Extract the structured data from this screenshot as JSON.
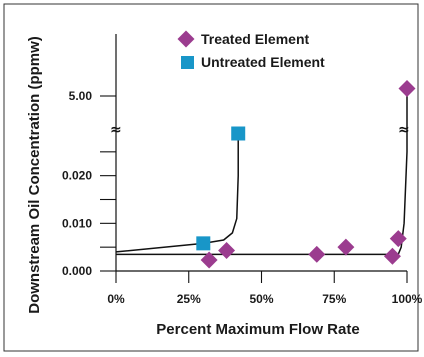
{
  "chart_data": {
    "type": "scatter",
    "xlabel": "Percent Maximum Flow Rate",
    "ylabel": "Downstream Oil Concentration (ppmw)",
    "x_ticks": [
      "0%",
      "25%",
      "50%",
      "75%",
      "100%"
    ],
    "x_tick_values": [
      0,
      25,
      50,
      75,
      100
    ],
    "y_ticks": [
      "0.000",
      "0.010",
      "0.020",
      "5.00"
    ],
    "y_tick_values": [
      0.0,
      0.01,
      0.02,
      5.0
    ],
    "xlim": [
      0,
      100
    ],
    "ylim": [
      0,
      0.03
    ],
    "y_axis_break": true,
    "break_glyph": "≈",
    "grid": false,
    "legend_position": "top-right",
    "series": [
      {
        "name": "Treated Element",
        "marker": "diamond",
        "color": "#9b3c8f",
        "points": [
          {
            "x": 32,
            "y": 0.0023
          },
          {
            "x": 38,
            "y": 0.0043
          },
          {
            "x": 69,
            "y": 0.0035
          },
          {
            "x": 79,
            "y": 0.005
          },
          {
            "x": 95,
            "y": 0.0031
          },
          {
            "x": 97,
            "y": 0.0068
          },
          {
            "x": 100,
            "y": 5.3
          }
        ],
        "curve": [
          [
            0,
            0.0035
          ],
          [
            97,
            0.0035
          ],
          [
            98,
            0.005
          ],
          [
            99,
            0.01
          ],
          [
            100,
            0.025
          ],
          [
            100,
            5.3
          ]
        ]
      },
      {
        "name": "Untreated Element",
        "marker": "square",
        "color": "#1896c8",
        "points": [
          {
            "x": 30,
            "y": 0.0058
          },
          {
            "x": 42,
            "y": 3.5
          }
        ],
        "curve": [
          [
            0,
            0.004
          ],
          [
            30,
            0.0058
          ],
          [
            37,
            0.0065
          ],
          [
            40,
            0.008
          ],
          [
            41.5,
            0.011
          ],
          [
            42,
            0.02
          ],
          [
            42,
            3.5
          ]
        ]
      }
    ]
  }
}
